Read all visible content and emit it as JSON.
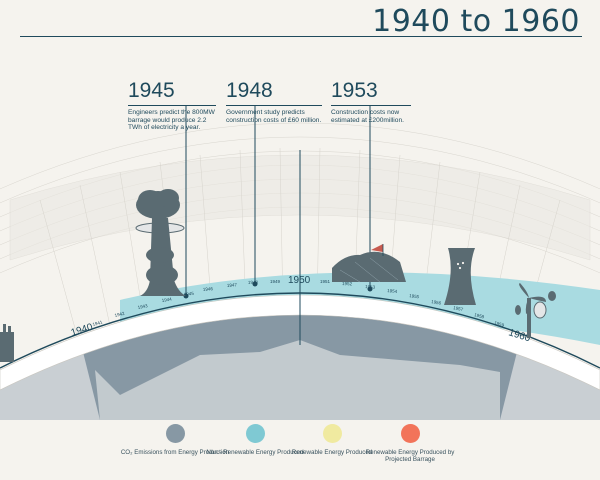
{
  "title": "1940 to 1960",
  "events": [
    {
      "year": "1945",
      "description": "Engineers predict the 800MW barrage  would produce 2.2 TWh of electricity a year."
    },
    {
      "year": "1948",
      "description": "Government study predicts construction costs of £60 million."
    },
    {
      "year": "1953",
      "description": "Construction costs now estimated at £200million."
    }
  ],
  "timeline": {
    "major_labels": [
      "1940",
      "1950",
      "1960"
    ],
    "minor_labels": [
      "1941",
      "1942",
      "1943",
      "1944",
      "1945",
      "1946",
      "1947",
      "1948",
      "1949",
      "1951",
      "1952",
      "1953",
      "1954",
      "1955",
      "1956",
      "1957",
      "1958",
      "1959"
    ]
  },
  "legend": [
    {
      "label": "CO₂ Emissions from Energy Production",
      "color": "#8798a4"
    },
    {
      "label": "Non - Renewable Energy Produced",
      "color": "#7fc9d3"
    },
    {
      "label": "Renewable Energy Produced",
      "color": "#f0eaa0"
    },
    {
      "label": "Renewable Energy Produced by Projected Barrage",
      "color": "#f2745a"
    }
  ],
  "icons": [
    "mushroom-cloud-icon",
    "coal-mine-icon",
    "cooling-tower-icon",
    "wind-turbine-icon",
    "factory-icon"
  ],
  "colors": {
    "ink": "#1f4a5c",
    "co2": "#8798a4",
    "nonrenewable": "#a9dbe1",
    "background": "#f5f3ee"
  }
}
